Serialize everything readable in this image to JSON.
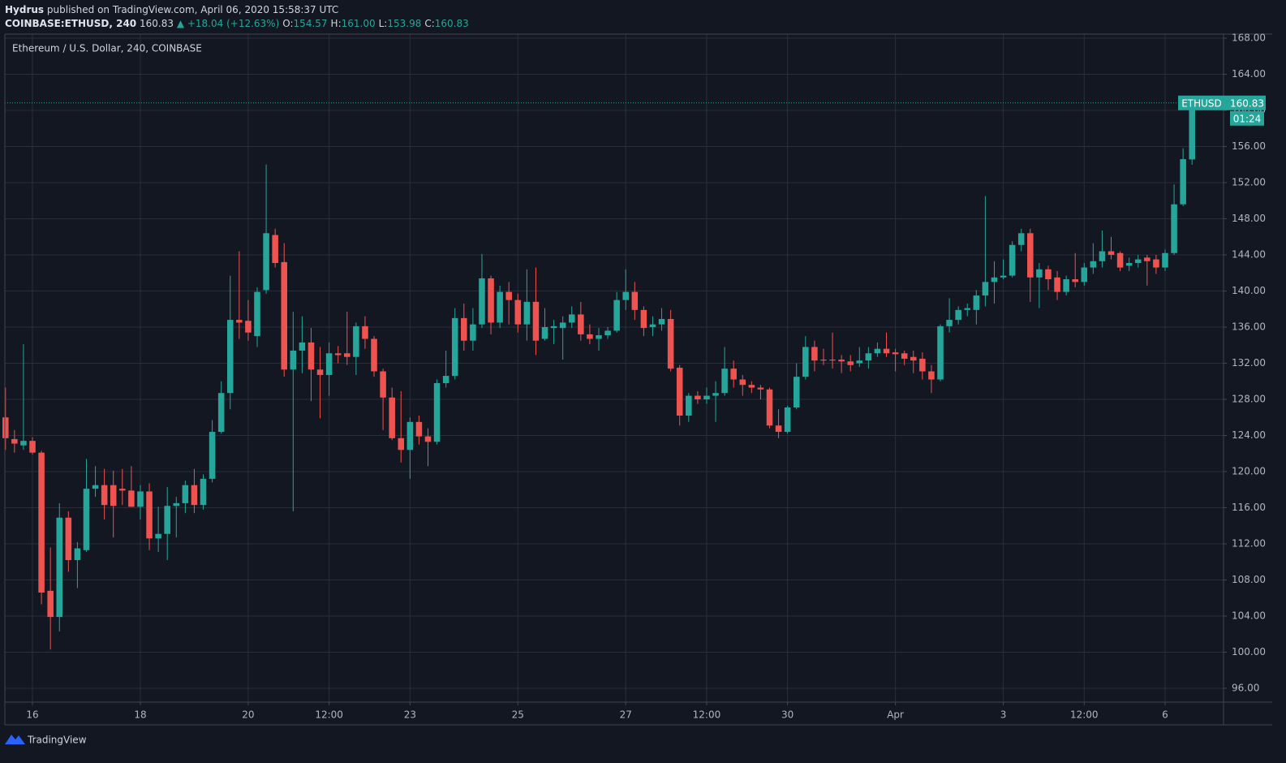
{
  "header": {
    "author": "Hydrus",
    "published": "published on TradingView.com, April 06, 2020 15:58:37 UTC",
    "symbol": "COINBASE:ETHUSD, 240",
    "last": "160.83",
    "change": "▲ +18.04 (+12.63%)",
    "ohlc": [
      {
        "label": "O:",
        "value": "154.57"
      },
      {
        "label": "H:",
        "value": "161.00"
      },
      {
        "label": "L:",
        "value": "153.98"
      },
      {
        "label": "C:",
        "value": "160.83"
      }
    ]
  },
  "chart_data": {
    "type": "candlestick",
    "title": "Ethereum / U.S. Dollar, 240, COINBASE",
    "up_color": "#26a69a",
    "down_color": "#ef5350",
    "grid": true,
    "price_label": "ETHUSD",
    "countdown": "01:24",
    "open": [
      126.0,
      123.6,
      122.9,
      123.4,
      122.1,
      106.8,
      103.9,
      114.9,
      110.2,
      111.3,
      118.1,
      118.5,
      118.5,
      118.1,
      117.9,
      116.1,
      117.8,
      112.6,
      113.1,
      116.2,
      116.5,
      118.5,
      116.3,
      119.2,
      124.4,
      128.7,
      136.8,
      136.7,
      135.0,
      140.1,
      146.2,
      143.2,
      131.3,
      133.4,
      134.3,
      131.3,
      130.7,
      133.1,
      133.1,
      132.7,
      136.1,
      134.7,
      131.1,
      128.2,
      123.7,
      122.4,
      125.5,
      123.9,
      123.3,
      129.8,
      130.6,
      137.0,
      134.5,
      136.3,
      141.4,
      136.5,
      139.9,
      139.0,
      136.3,
      138.8,
      134.7,
      135.9,
      135.9,
      136.5,
      137.4,
      135.2,
      134.7,
      135.1,
      135.6,
      139.0,
      139.9,
      137.9,
      136.0,
      136.3,
      136.9,
      131.5,
      126.2,
      128.4,
      128.0,
      128.4,
      128.7,
      131.4,
      130.2,
      129.6,
      129.3,
      129.1,
      125.1,
      124.4,
      127.1,
      130.5,
      133.8,
      132.4,
      132.4,
      132.4,
      132.2,
      132.0,
      132.3,
      133.1,
      133.6,
      133.2,
      133.1,
      132.7,
      132.5,
      131.1,
      130.2,
      136.1,
      136.8,
      137.9,
      137.9,
      139.5,
      141.0,
      141.5,
      141.7,
      145.1,
      146.4,
      141.5,
      142.4,
      141.5,
      139.9,
      141.3,
      141.0,
      142.6,
      143.3,
      144.4,
      144.2,
      142.8,
      143.1,
      143.7,
      143.5,
      142.6,
      144.2,
      149.6,
      154.57
    ],
    "high": [
      129.3,
      124.6,
      134.1,
      123.8,
      122.3,
      111.6,
      116.5,
      115.6,
      112.2,
      121.4,
      120.6,
      120.3,
      120.1,
      120.3,
      120.6,
      118.5,
      118.7,
      116.1,
      118.3,
      117.2,
      119.0,
      120.3,
      119.7,
      125.7,
      130.0,
      141.7,
      144.4,
      139.0,
      140.4,
      154.0,
      146.9,
      145.3,
      137.7,
      137.2,
      135.9,
      133.8,
      134.3,
      133.9,
      137.7,
      136.5,
      137.2,
      135.0,
      131.4,
      129.3,
      128.9,
      126.0,
      126.2,
      124.8,
      130.2,
      133.4,
      138.1,
      138.6,
      138.1,
      144.1,
      141.7,
      140.6,
      141.0,
      139.7,
      142.4,
      142.6,
      138.1,
      136.8,
      137.2,
      138.3,
      138.8,
      136.3,
      135.9,
      136.0,
      139.9,
      142.4,
      141.0,
      138.3,
      137.2,
      138.1,
      137.9,
      131.8,
      128.7,
      128.9,
      129.3,
      130.0,
      133.8,
      132.3,
      130.7,
      130.0,
      129.6,
      129.3,
      126.9,
      127.3,
      132.0,
      135.0,
      134.5,
      133.6,
      135.4,
      132.9,
      132.9,
      133.8,
      133.8,
      134.3,
      135.4,
      133.6,
      133.4,
      133.4,
      133.2,
      131.8,
      136.3,
      139.2,
      138.3,
      138.6,
      140.1,
      150.5,
      143.3,
      143.5,
      145.5,
      146.9,
      146.9,
      143.1,
      142.8,
      142.2,
      141.7,
      144.2,
      143.1,
      145.3,
      146.7,
      146.0,
      144.4,
      143.7,
      144.0,
      144.0,
      144.0,
      144.6,
      151.8,
      155.8,
      161.0
    ],
    "low": [
      122.4,
      122.1,
      122.4,
      121.9,
      105.3,
      100.3,
      102.3,
      108.9,
      107.1,
      111.1,
      117.2,
      114.7,
      112.7,
      116.3,
      116.1,
      114.7,
      111.3,
      111.1,
      110.2,
      112.7,
      115.4,
      115.4,
      115.8,
      118.8,
      124.2,
      126.9,
      134.7,
      134.5,
      133.8,
      139.7,
      142.6,
      130.5,
      115.6,
      130.9,
      127.8,
      125.9,
      128.4,
      132.0,
      131.8,
      130.7,
      133.6,
      130.5,
      124.6,
      123.5,
      121.0,
      119.2,
      123.0,
      120.6,
      123.0,
      129.3,
      130.2,
      133.4,
      133.4,
      135.9,
      135.2,
      135.9,
      136.3,
      135.4,
      134.5,
      132.9,
      134.5,
      134.1,
      132.4,
      135.9,
      134.5,
      134.1,
      133.4,
      134.7,
      135.4,
      137.9,
      136.8,
      135.0,
      135.0,
      135.6,
      131.1,
      125.1,
      125.5,
      127.5,
      127.5,
      125.5,
      128.4,
      129.3,
      128.4,
      128.7,
      128.0,
      124.8,
      123.7,
      124.2,
      126.9,
      130.2,
      131.1,
      131.8,
      131.4,
      130.9,
      131.1,
      131.6,
      131.4,
      132.7,
      132.7,
      131.1,
      131.8,
      130.9,
      130.2,
      128.7,
      130.0,
      135.4,
      136.3,
      137.2,
      136.3,
      138.3,
      138.6,
      141.3,
      141.5,
      144.4,
      138.8,
      138.1,
      140.1,
      139.0,
      139.5,
      140.4,
      140.6,
      141.9,
      142.6,
      143.5,
      142.2,
      142.2,
      142.6,
      140.6,
      141.9,
      142.2,
      144.0,
      149.4,
      153.98
    ],
    "close": [
      123.7,
      123.1,
      123.4,
      122.1,
      106.6,
      103.9,
      114.9,
      110.2,
      111.5,
      118.1,
      118.5,
      116.3,
      116.2,
      117.9,
      116.1,
      117.8,
      112.6,
      113.1,
      116.2,
      116.5,
      118.5,
      116.3,
      119.2,
      124.4,
      128.7,
      136.8,
      136.5,
      135.4,
      139.9,
      146.4,
      143.1,
      131.3,
      133.4,
      134.3,
      131.3,
      130.7,
      133.1,
      132.9,
      132.7,
      136.1,
      134.7,
      131.1,
      128.2,
      123.7,
      122.4,
      125.5,
      123.9,
      123.3,
      129.8,
      130.6,
      137.0,
      134.5,
      136.3,
      141.4,
      136.5,
      139.9,
      139.0,
      136.3,
      138.8,
      134.5,
      136.0,
      136.1,
      136.5,
      137.4,
      135.2,
      134.7,
      135.1,
      135.6,
      139.0,
      139.9,
      137.9,
      135.9,
      136.3,
      136.9,
      131.4,
      126.2,
      128.4,
      128.0,
      128.4,
      128.7,
      131.4,
      130.2,
      129.6,
      129.3,
      129.1,
      125.1,
      124.4,
      127.1,
      130.5,
      133.8,
      132.3,
      132.3,
      132.3,
      132.2,
      131.8,
      132.3,
      133.1,
      133.6,
      133.1,
      133.0,
      132.5,
      132.3,
      131.1,
      130.2,
      136.1,
      136.8,
      137.9,
      138.1,
      139.5,
      141.0,
      141.5,
      141.7,
      145.1,
      146.4,
      141.5,
      142.4,
      141.3,
      139.9,
      141.3,
      141.0,
      142.6,
      143.3,
      144.4,
      144.0,
      142.6,
      143.1,
      143.5,
      143.3,
      142.6,
      144.2,
      149.6,
      154.6,
      160.83
    ],
    "xlim": [
      -0.07,
      135.5
    ],
    "xticks": [
      {
        "value": 3,
        "label": "16"
      },
      {
        "value": 15,
        "label": "18"
      },
      {
        "value": 27,
        "label": "20"
      },
      {
        "value": 36,
        "label": "12:00"
      },
      {
        "value": 45,
        "label": "23"
      },
      {
        "value": 57,
        "label": "25"
      },
      {
        "value": 69,
        "label": "27"
      },
      {
        "value": 78,
        "label": "12:00"
      },
      {
        "value": 87,
        "label": "30"
      },
      {
        "value": 99,
        "label": "Apr"
      },
      {
        "value": 111,
        "label": "3"
      },
      {
        "value": 120,
        "label": "12:00"
      },
      {
        "value": 129,
        "label": "6"
      }
    ],
    "ylim": [
      94.47,
      168.45
    ],
    "yticks": [
      {
        "value": 96,
        "label": "96.00"
      },
      {
        "value": 100,
        "label": "100.00"
      },
      {
        "value": 104,
        "label": "104.00"
      },
      {
        "value": 108,
        "label": "108.00"
      },
      {
        "value": 112,
        "label": "112.00"
      },
      {
        "value": 116,
        "label": "116.00"
      },
      {
        "value": 120,
        "label": "120.00"
      },
      {
        "value": 124,
        "label": "124.00"
      },
      {
        "value": 128,
        "label": "128.00"
      },
      {
        "value": 132,
        "label": "132.00"
      },
      {
        "value": 136,
        "label": "136.00"
      },
      {
        "value": 140,
        "label": "140.00"
      },
      {
        "value": 144,
        "label": "144.00"
      },
      {
        "value": 148,
        "label": "148.00"
      },
      {
        "value": 152,
        "label": "152.00"
      },
      {
        "value": 156,
        "label": "156.00"
      },
      {
        "value": 160,
        "label": "160.00"
      },
      {
        "value": 164,
        "label": "164.00"
      },
      {
        "value": 168,
        "label": "168.00"
      }
    ]
  },
  "footer": {
    "brand": "TradingView"
  }
}
